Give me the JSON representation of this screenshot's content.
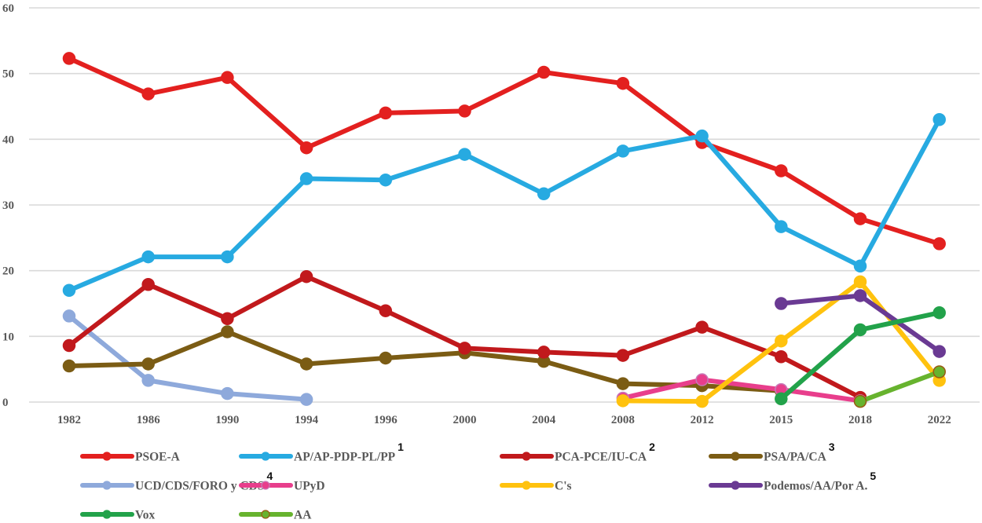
{
  "chart_data": {
    "type": "line",
    "title": "",
    "xlabel": "",
    "ylabel": "",
    "ylim": [
      0,
      60
    ],
    "yticks": [
      0,
      10,
      20,
      30,
      40,
      50,
      60
    ],
    "grid": true,
    "legend_position": "bottom",
    "categories": [
      "1982",
      "1986",
      "1990",
      "1994",
      "1996",
      "2000",
      "2004",
      "2008",
      "2012",
      "2015",
      "2018",
      "2022"
    ],
    "series": [
      {
        "name": "PSOE-A",
        "footnote": "",
        "color": "#E3201F",
        "marker_edge": "#E3201F",
        "values": [
          52.3,
          46.9,
          49.4,
          38.7,
          44.0,
          44.3,
          50.2,
          48.5,
          39.5,
          35.2,
          27.9,
          24.1
        ]
      },
      {
        "name": "AP/AP-PDP-PL/PP",
        "footnote": "1",
        "color": "#27AAE1",
        "marker_edge": "#27AAE1",
        "values": [
          17.0,
          22.1,
          22.1,
          34.0,
          33.8,
          37.7,
          31.7,
          38.2,
          40.5,
          26.7,
          20.7,
          43.0
        ]
      },
      {
        "name": "PCA-PCE/IU-CA",
        "footnote": "2",
        "color": "#C1191C",
        "marker_edge": "#C1191C",
        "values": [
          8.6,
          17.9,
          12.7,
          19.1,
          13.9,
          8.2,
          7.6,
          7.1,
          11.4,
          6.9,
          0.7,
          null
        ]
      },
      {
        "name": "PSA/PA/CA",
        "footnote": "3",
        "color": "#7B5C14",
        "marker_edge": "#7B5C14",
        "values": [
          5.5,
          5.8,
          10.7,
          5.8,
          6.7,
          7.5,
          6.2,
          2.8,
          2.5,
          1.7,
          null,
          null
        ]
      },
      {
        "name": "UCD/CDS/FORO y CDS",
        "footnote": "4",
        "color": "#8EA9DB",
        "marker_edge": "#8EA9DB",
        "values": [
          13.1,
          3.3,
          1.3,
          0.4,
          null,
          null,
          null,
          null,
          null,
          null,
          null,
          null
        ]
      },
      {
        "name": "UPyD",
        "footnote": "",
        "color": "#E83E8C",
        "marker_edge": "#C77AB8",
        "values": [
          null,
          null,
          null,
          null,
          null,
          null,
          null,
          0.6,
          3.4,
          1.9,
          0.2,
          null
        ]
      },
      {
        "name": "C's",
        "footnote": "",
        "color": "#FFC20E",
        "marker_edge": "#FFC20E",
        "values": [
          null,
          null,
          null,
          null,
          null,
          null,
          null,
          0.2,
          0.1,
          9.3,
          18.3,
          3.3
        ]
      },
      {
        "name": "Podemos/AA/Por A.",
        "footnote": "5",
        "color": "#6A3A93",
        "marker_edge": "#6A3A93",
        "values": [
          null,
          null,
          null,
          null,
          null,
          null,
          null,
          null,
          null,
          15.0,
          16.2,
          7.7
        ]
      },
      {
        "name": "Vox",
        "footnote": "",
        "color": "#22A24A",
        "marker_edge": "#22A24A",
        "values": [
          null,
          null,
          null,
          null,
          null,
          null,
          null,
          null,
          null,
          0.5,
          11.0,
          13.6
        ]
      },
      {
        "name": "AA",
        "footnote": "",
        "color": "#67B32E",
        "marker_edge": "#9A5A12",
        "values": [
          null,
          null,
          null,
          null,
          null,
          null,
          null,
          null,
          null,
          null,
          0.1,
          4.6
        ]
      }
    ],
    "draw_order": [
      4,
      3,
      2,
      0,
      1,
      5,
      6,
      7,
      8,
      9
    ]
  }
}
